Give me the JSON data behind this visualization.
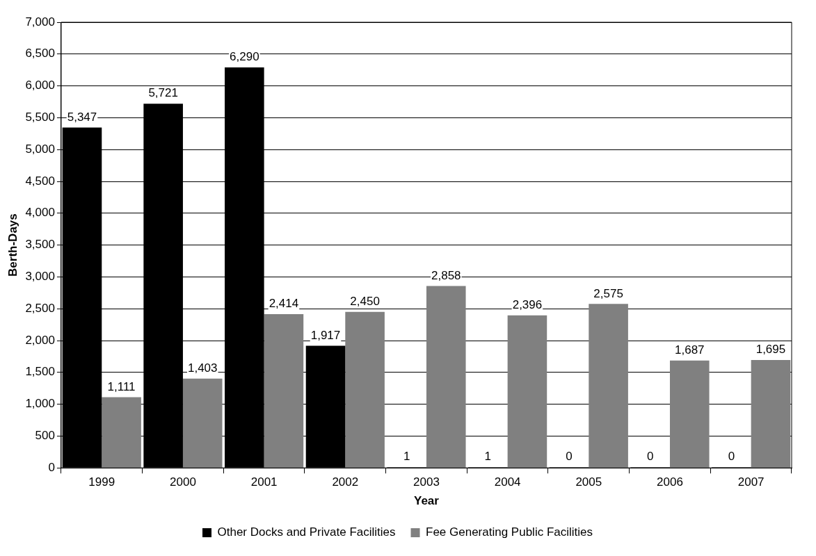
{
  "chart_data": {
    "type": "bar",
    "xlabel": "Year",
    "ylabel": "Berth-Days",
    "categories": [
      "1999",
      "2000",
      "2001",
      "2002",
      "2003",
      "2004",
      "2005",
      "2006",
      "2007"
    ],
    "series": [
      {
        "name": "Other Docks and Private Facilities",
        "color": "#000000",
        "values": [
          5347,
          5721,
          6290,
          1917,
          1,
          1,
          0,
          0,
          0
        ],
        "value_labels": [
          "5,347",
          "5,721",
          "6,290",
          "1,917",
          "1",
          "1",
          "0",
          "0",
          "0"
        ]
      },
      {
        "name": "Fee Generating Public Facilities",
        "color": "#808080",
        "values": [
          1111,
          1403,
          2414,
          2450,
          2858,
          2396,
          2575,
          1687,
          1695
        ],
        "value_labels": [
          "1,111",
          "1,403",
          "2,414",
          "2,450",
          "2,858",
          "2,396",
          "2,575",
          "1,687",
          "1,695"
        ]
      }
    ],
    "ylim": [
      0,
      7000
    ],
    "yticks": [
      {
        "value": 0,
        "label": "0"
      },
      {
        "value": 500,
        "label": "500"
      },
      {
        "value": 1000,
        "label": "1,000"
      },
      {
        "value": 1500,
        "label": "1,500"
      },
      {
        "value": 2000,
        "label": "2,000"
      },
      {
        "value": 2500,
        "label": "2,500"
      },
      {
        "value": 3000,
        "label": "3,000"
      },
      {
        "value": 3500,
        "label": "3,500"
      },
      {
        "value": 4000,
        "label": "4,000"
      },
      {
        "value": 4500,
        "label": "4,500"
      },
      {
        "value": 5000,
        "label": "5,000"
      },
      {
        "value": 5500,
        "label": "5,500"
      },
      {
        "value": 6000,
        "label": "6,000"
      },
      {
        "value": 6500,
        "label": "6,500"
      },
      {
        "value": 7000,
        "label": "7,000"
      }
    ],
    "grid": "y",
    "legend": "bottom"
  }
}
